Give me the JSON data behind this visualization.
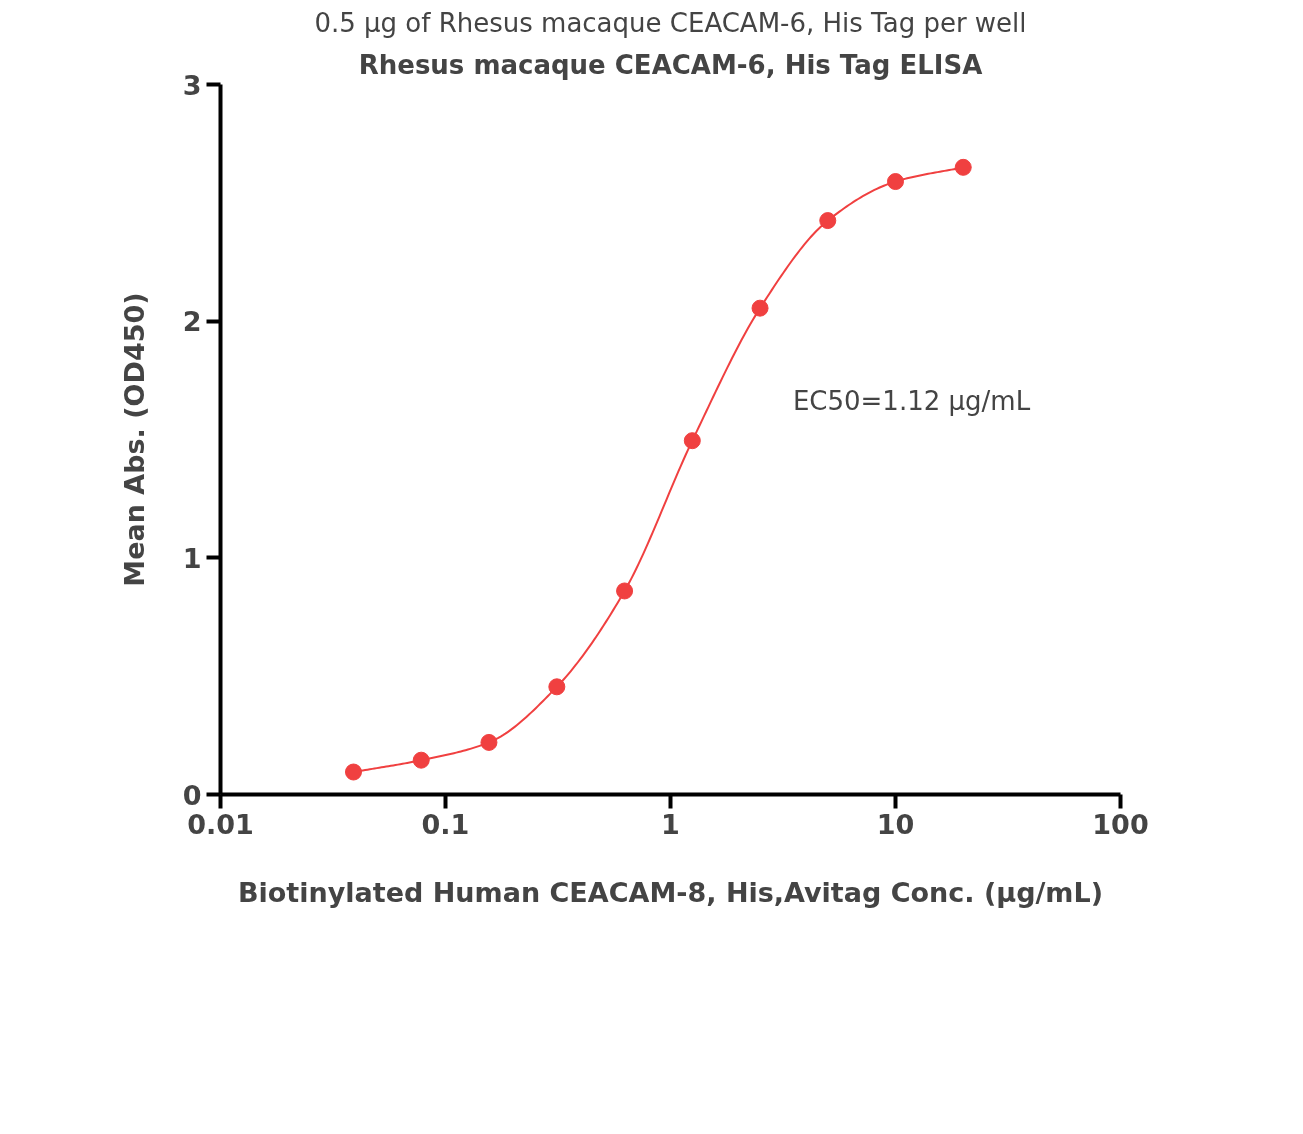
{
  "chart_data": {
    "type": "line",
    "title": "Rhesus macaque CEACAM-6, His Tag ELISA",
    "subtitle": "0.5 μg of Rhesus macaque CEACAM-6, His Tag per well",
    "xlabel": "Biotinylated Human CEACAM-8, His,Avitag Conc. (μg/mL)",
    "ylabel": "Mean Abs. (OD450)",
    "annotations": [
      "EC50=1.12 μg/mL"
    ],
    "x": [
      0.039,
      0.078,
      0.156,
      0.3125,
      0.625,
      1.25,
      2.5,
      5,
      10,
      20
    ],
    "series": [
      {
        "color": "#f04040",
        "values": [
          0.095,
          0.145,
          0.22,
          0.455,
          0.86,
          1.495,
          2.055,
          2.425,
          2.59,
          2.65
        ]
      }
    ],
    "log": "x",
    "xlim": [
      0.01,
      100
    ],
    "xticks": [
      0.01,
      0.1,
      1,
      10,
      100
    ],
    "ylim": [
      0,
      3
    ],
    "yticks": [
      0,
      1,
      2,
      3
    ],
    "marker": "circle",
    "line_style": "solid",
    "grid": false
  }
}
